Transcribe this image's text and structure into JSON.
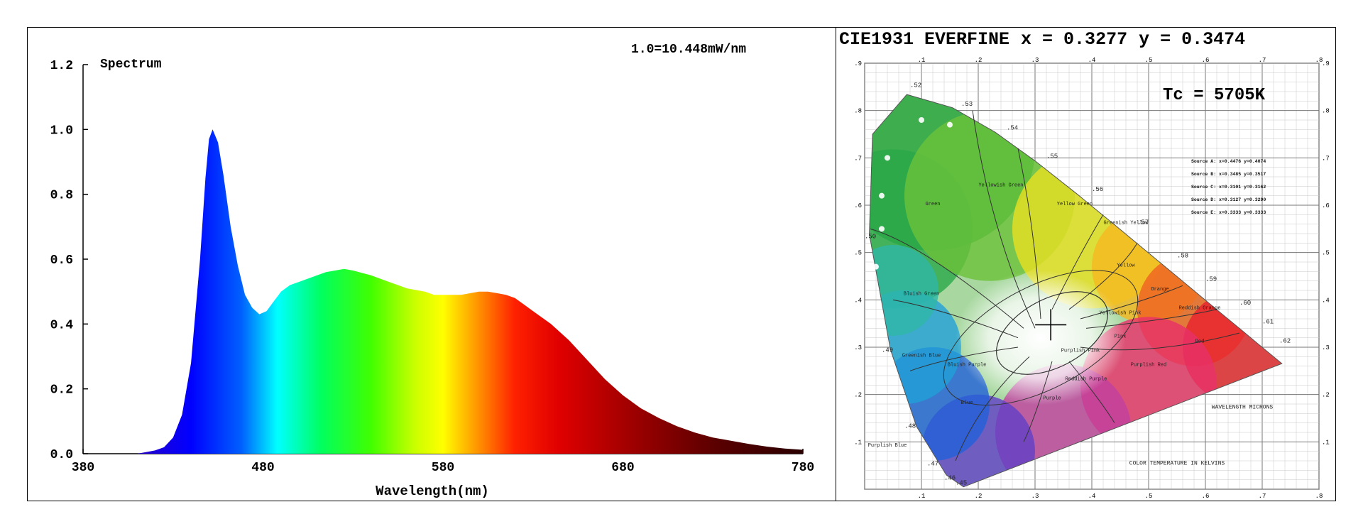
{
  "chart_data": [
    {
      "type": "area",
      "title": "Spectrum",
      "annotation": "1.0=10.448mW/nm",
      "xlabel": "Wavelength(nm)",
      "ylabel": "",
      "xlim": [
        380,
        780
      ],
      "ylim": [
        0,
        1.2
      ],
      "x_ticks": [
        "380",
        "480",
        "580",
        "680",
        "780"
      ],
      "y_ticks": [
        "0.0",
        "0.2",
        "0.4",
        "0.6",
        "0.8",
        "1.0",
        "1.2"
      ],
      "grid": false,
      "fill": "spectral gradient",
      "series": [
        {
          "x": [
            380,
            400,
            410,
            415,
            420,
            425,
            430,
            435,
            440,
            445,
            448,
            450,
            452,
            455,
            458,
            462,
            466,
            470,
            474,
            478,
            482,
            486,
            490,
            495,
            500,
            505,
            510,
            515,
            520,
            525,
            530,
            540,
            550,
            560,
            570,
            575,
            580,
            590,
            600,
            605,
            610,
            615,
            620,
            625,
            630,
            640,
            650,
            660,
            670,
            680,
            690,
            700,
            710,
            720,
            730,
            740,
            750,
            760,
            770,
            780
          ],
          "y": [
            0.0,
            0.0,
            0.0,
            0.005,
            0.01,
            0.02,
            0.05,
            0.12,
            0.28,
            0.6,
            0.85,
            0.97,
            1.0,
            0.96,
            0.86,
            0.7,
            0.58,
            0.49,
            0.45,
            0.43,
            0.44,
            0.47,
            0.5,
            0.52,
            0.53,
            0.54,
            0.55,
            0.56,
            0.565,
            0.57,
            0.565,
            0.55,
            0.53,
            0.51,
            0.5,
            0.49,
            0.49,
            0.49,
            0.5,
            0.5,
            0.495,
            0.49,
            0.48,
            0.46,
            0.44,
            0.4,
            0.35,
            0.29,
            0.23,
            0.18,
            0.14,
            0.11,
            0.085,
            0.065,
            0.05,
            0.04,
            0.03,
            0.022,
            0.016,
            0.012
          ]
        }
      ]
    },
    {
      "type": "scatter",
      "title": "CIE1931 EVERFINE",
      "header_parts": [
        "CIE1931 EVERFINE",
        "x = 0.3277",
        "y = 0.3474"
      ],
      "tc": "Tc = 5705K",
      "xlim": [
        0,
        0.8
      ],
      "ylim": [
        0,
        0.9
      ],
      "x_ticks": [
        ".1",
        ".2",
        ".3",
        ".4",
        ".5",
        ".6",
        ".7",
        ".8"
      ],
      "y_ticks": [
        ".1",
        ".2",
        ".3",
        ".4",
        ".5",
        ".6",
        ".7",
        ".8",
        ".9"
      ],
      "point": {
        "x": 0.3277,
        "y": 0.3474
      },
      "locus": [
        [
          0.1741,
          0.005
        ],
        [
          0.144,
          0.0297
        ],
        [
          0.0913,
          0.1327
        ],
        [
          0.0454,
          0.295
        ],
        [
          0.0082,
          0.5384
        ],
        [
          0.0139,
          0.7502
        ],
        [
          0.0743,
          0.8338
        ],
        [
          0.1547,
          0.8059
        ],
        [
          0.2296,
          0.7543
        ],
        [
          0.3016,
          0.6923
        ],
        [
          0.3731,
          0.6245
        ],
        [
          0.4441,
          0.5547
        ],
        [
          0.5125,
          0.4866
        ],
        [
          0.5752,
          0.4242
        ],
        [
          0.627,
          0.3725
        ],
        [
          0.6658,
          0.334
        ],
        [
          0.6915,
          0.3083
        ],
        [
          0.7347,
          0.2653
        ]
      ],
      "locus_labels": [
        ".52",
        ".53",
        ".54",
        ".55",
        ".56",
        ".57",
        ".58",
        ".59",
        ".60",
        ".61",
        ".62",
        ".50",
        ".49",
        ".48",
        ".47",
        ".46",
        ".45"
      ],
      "region_labels": [
        "Green",
        "Yellowish Green",
        "Yellow Green",
        "Greenish Yellow",
        "Yellow",
        "Orange",
        "Reddish Orange",
        "Red",
        "Purplish Red",
        "Reddish Purple",
        "Purple",
        "Bluish Purple",
        "Blue",
        "Greenish Blue",
        "Bluish Green",
        "Purplish Blue",
        "Purplish Pink",
        "Pink",
        "Yellowish Pink"
      ],
      "sources_legend": [
        "Source A: x=0.4476 y=0.4074",
        "Source B: x=0.3485 y=0.3517",
        "Source C: x=0.3101 y=0.3162",
        "Source D: x=0.3127 y=0.3290",
        "Source E: x=0.3333 y=0.3333"
      ],
      "bottom_caption": "COLOR TEMPERATURE IN KELVINS",
      "wavelength_caption": "WAVELENGTH MICRONS"
    }
  ]
}
